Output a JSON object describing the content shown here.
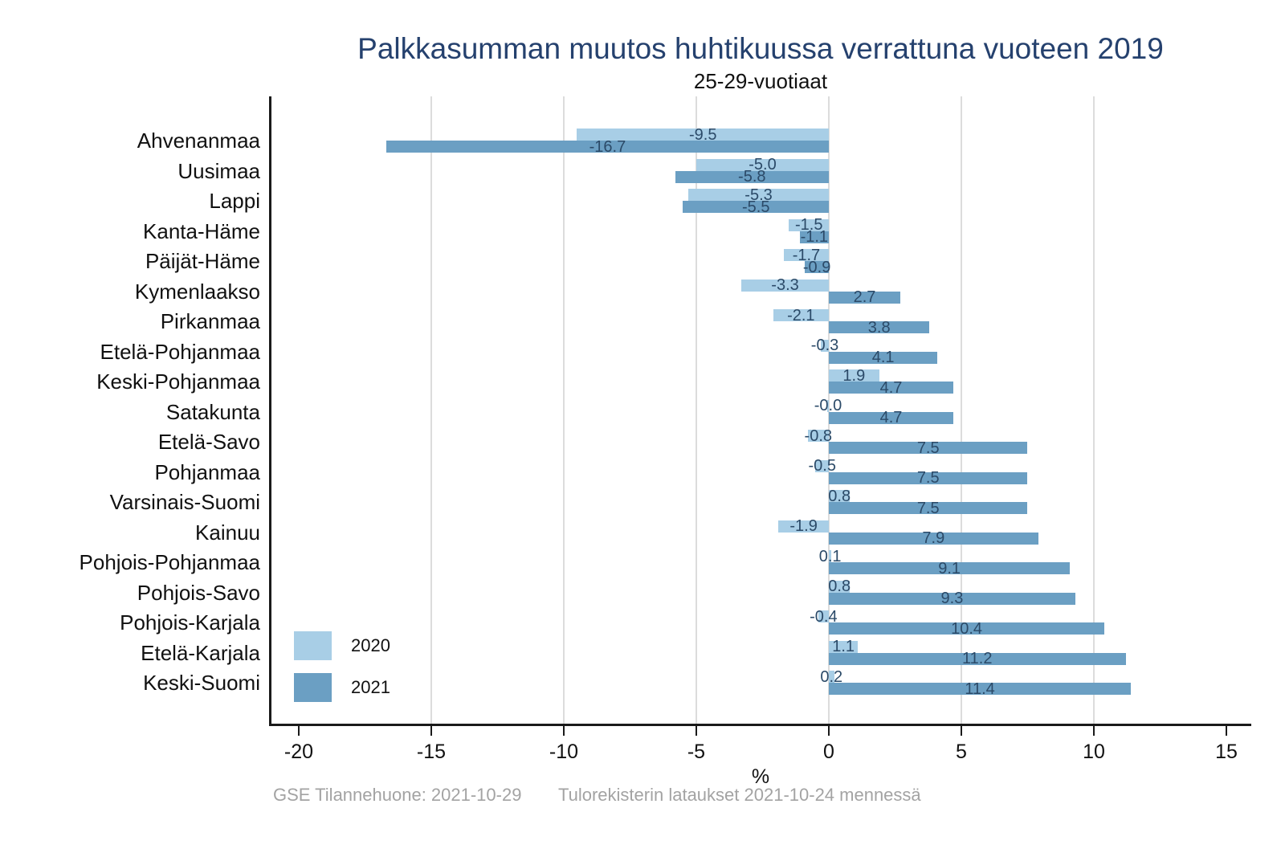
{
  "title": "Palkkasumman muutos huhtikuussa verrattuna vuoteen 2019",
  "subtitle": "25-29-vuotiaat",
  "footer": {
    "left": "GSE Tilannehuone: 2021-10-29",
    "right": "Tulorekisterin lataukset 2021-10-24 mennessä"
  },
  "legend": [
    {
      "label": "2020",
      "color": "#a8cee6"
    },
    {
      "label": "2021",
      "color": "#6b9fc3"
    }
  ],
  "colors": {
    "series_2020": "#a8cee6",
    "series_2021": "#6b9fc3",
    "title": "#25416e",
    "bar_value_label": "#2b4a68",
    "gridline": "#dcdcdc",
    "axis_line": "#1a1a1a",
    "footer_text": "#a3a3a3"
  },
  "chart_data": {
    "type": "bar",
    "orientation": "horizontal",
    "title": "Palkkasumman muutos huhtikuussa verrattuna vuoteen 2019",
    "subtitle": "25-29-vuotiaat",
    "xlabel": "%",
    "x_range": [
      -21.06,
      15.91
    ],
    "x_ticks": [
      -20,
      -15,
      -10,
      -5,
      0,
      5,
      10,
      15
    ],
    "gridlines_at": [
      -15,
      -10,
      -5,
      0,
      5,
      10
    ],
    "grid": true,
    "legend_position": "bottom-left-inside",
    "categories": [
      "Ahvenanmaa",
      "Uusimaa",
      "Lappi",
      "Kanta-Häme",
      "Päijät-Häme",
      "Kymenlaakso",
      "Pirkanmaa",
      "Etelä-Pohjanmaa",
      "Keski-Pohjanmaa",
      "Satakunta",
      "Etelä-Savo",
      "Pohjanmaa",
      "Varsinais-Suomi",
      "Kainuu",
      "Pohjois-Pohjanmaa",
      "Pohjois-Savo",
      "Pohjois-Karjala",
      "Etelä-Karjala",
      "Keski-Suomi"
    ],
    "series": [
      {
        "name": "2020",
        "color": "#a8cee6",
        "values": [
          -9.5,
          -5.0,
          -5.3,
          -1.5,
          -1.7,
          -3.3,
          -2.1,
          -0.3,
          1.9,
          -0.0,
          -0.8,
          -0.5,
          0.8,
          -1.9,
          0.1,
          0.8,
          -0.4,
          1.1,
          0.2
        ],
        "labels": [
          "-9.5",
          "-5.0",
          "-5.3",
          "-1.5",
          "-1.7",
          "-3.3",
          "-2.1",
          "-0.3",
          "1.9",
          "-0.0",
          "-0.8",
          "-0.5",
          "0.8",
          "-1.9",
          "0.1",
          "0.8",
          "-0.4",
          "1.1",
          "0.2"
        ]
      },
      {
        "name": "2021",
        "color": "#6b9fc3",
        "values": [
          -16.7,
          -5.8,
          -5.5,
          -1.1,
          -0.9,
          2.7,
          3.8,
          4.1,
          4.7,
          4.7,
          7.5,
          7.5,
          7.5,
          7.9,
          9.1,
          9.3,
          10.4,
          11.2,
          11.4
        ],
        "labels": [
          "-16.7",
          "-5.8",
          "-5.5",
          "-1.1",
          "-0.9",
          "2.7",
          "3.8",
          "4.1",
          "4.7",
          "4.7",
          "7.5",
          "7.5",
          "7.5",
          "7.9",
          "9.1",
          "9.3",
          "10.4",
          "11.2",
          "11.4"
        ]
      }
    ]
  }
}
